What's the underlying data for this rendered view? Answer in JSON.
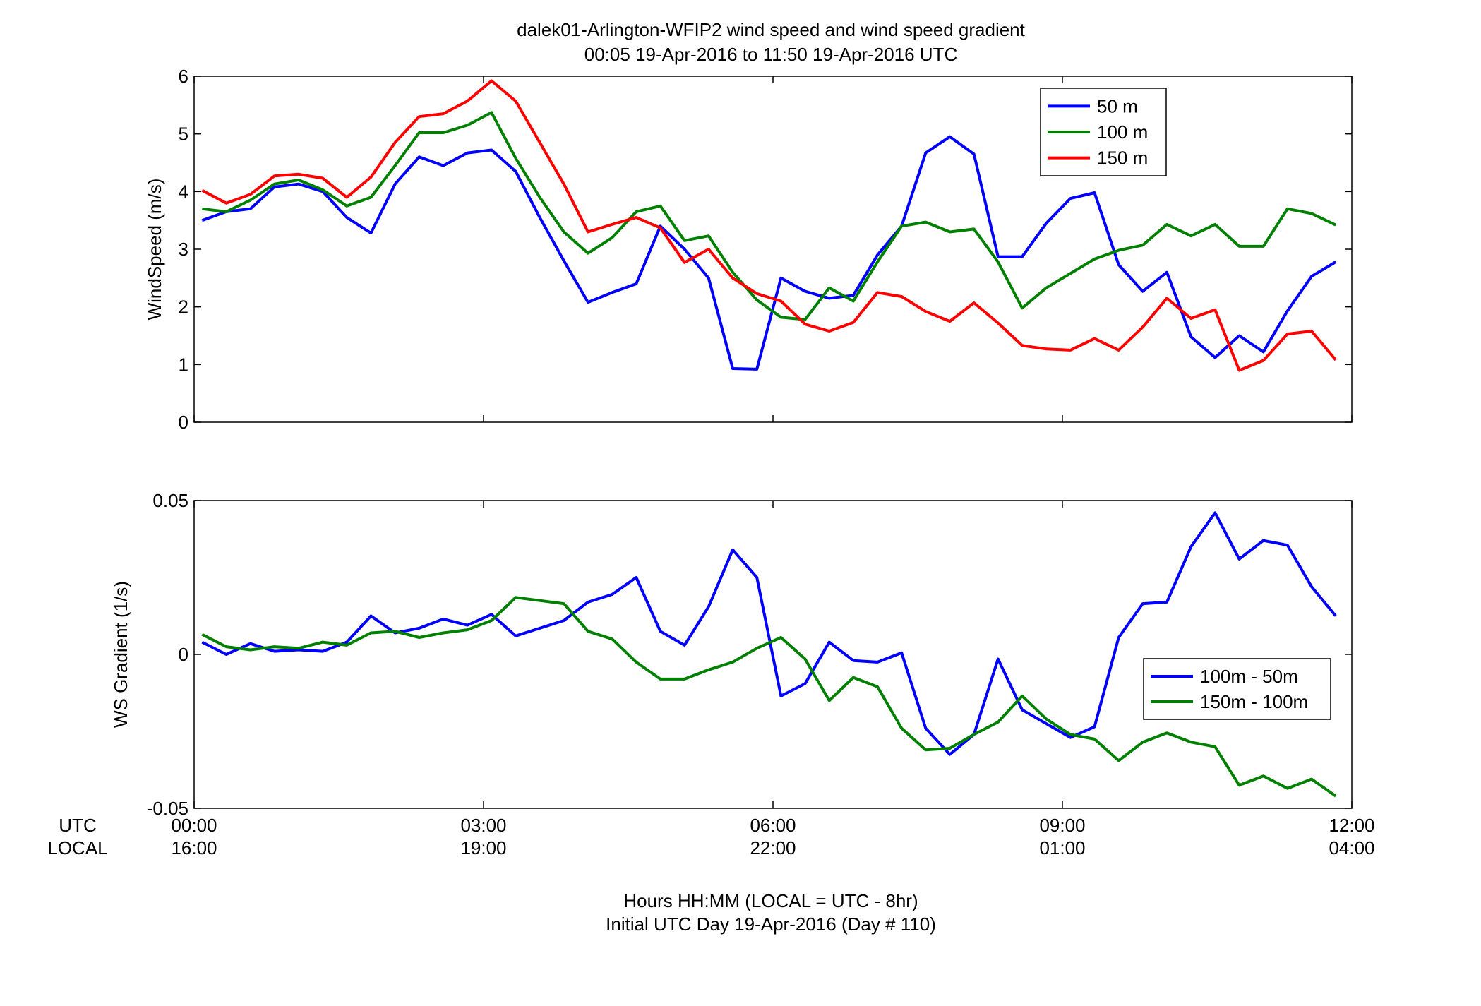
{
  "title_line1": "dalek01-Arlington-WFIP2  wind speed and wind speed gradient",
  "title_line2": "00:05 19-Apr-2016 to 11:50 19-Apr-2016  UTC",
  "xaxis": {
    "utc_label": "UTC",
    "local_label": "LOCAL",
    "utc_ticks": [
      "00:00",
      "03:00",
      "06:00",
      "09:00",
      "12:00"
    ],
    "local_ticks": [
      "16:00",
      "19:00",
      "22:00",
      "01:00",
      "04:00"
    ],
    "tick_hours": [
      0,
      3,
      6,
      9,
      12
    ],
    "footer_line1": "Hours HH:MM  (LOCAL = UTC - 8hr)",
    "footer_line2": "Initial UTC Day 19-Apr-2016 (Day # 110)"
  },
  "chart_data": [
    {
      "type": "line",
      "ylabel": "WindSpeed (m/s)",
      "xlim": [
        0,
        12
      ],
      "ylim": [
        0,
        6
      ],
      "yticks": [
        0,
        1,
        2,
        3,
        4,
        5,
        6
      ],
      "legend_position": "top-right",
      "x": [
        0.083,
        0.333,
        0.583,
        0.833,
        1.083,
        1.333,
        1.583,
        1.833,
        2.083,
        2.333,
        2.583,
        2.833,
        3.083,
        3.333,
        3.583,
        3.833,
        4.083,
        4.333,
        4.583,
        4.833,
        5.083,
        5.333,
        5.583,
        5.833,
        6.083,
        6.333,
        6.583,
        6.833,
        7.083,
        7.333,
        7.583,
        7.833,
        8.083,
        8.333,
        8.583,
        8.833,
        9.083,
        9.333,
        9.583,
        9.833,
        10.083,
        10.333,
        10.583,
        10.833,
        11.083,
        11.333,
        11.583,
        11.833
      ],
      "series": [
        {
          "name": "50 m",
          "color": "#0000ff",
          "values": [
            3.5,
            3.65,
            3.7,
            4.08,
            4.13,
            4.0,
            3.55,
            3.28,
            4.13,
            4.6,
            4.45,
            4.67,
            4.72,
            4.35,
            3.55,
            2.8,
            2.08,
            2.25,
            2.4,
            3.4,
            3.0,
            2.5,
            0.93,
            0.92,
            2.5,
            2.27,
            2.15,
            2.2,
            2.9,
            3.4,
            4.67,
            4.95,
            4.65,
            2.87,
            2.87,
            3.45,
            3.88,
            3.98,
            2.73,
            2.27,
            2.6,
            1.48,
            1.12,
            1.5,
            1.22,
            1.93,
            2.53,
            2.78
          ]
        },
        {
          "name": "100 m",
          "color": "#008000",
          "values": [
            3.7,
            3.65,
            3.85,
            4.13,
            4.2,
            4.03,
            3.75,
            3.9,
            4.45,
            5.02,
            5.02,
            5.15,
            5.37,
            4.58,
            3.9,
            3.3,
            2.93,
            3.2,
            3.65,
            3.75,
            3.15,
            3.23,
            2.6,
            2.12,
            1.82,
            1.78,
            2.33,
            2.1,
            2.78,
            3.4,
            3.47,
            3.3,
            3.35,
            2.78,
            1.98,
            2.33,
            2.58,
            2.83,
            2.98,
            3.07,
            3.43,
            3.23,
            3.43,
            3.05,
            3.05,
            3.7,
            3.62,
            3.42
          ]
        },
        {
          "name": "150 m",
          "color": "#ff0000",
          "values": [
            4.02,
            3.8,
            3.95,
            4.27,
            4.3,
            4.23,
            3.9,
            4.25,
            4.85,
            5.3,
            5.35,
            5.57,
            5.92,
            5.57,
            4.85,
            4.13,
            3.3,
            3.43,
            3.55,
            3.37,
            2.77,
            3.0,
            2.5,
            2.23,
            2.1,
            1.7,
            1.58,
            1.73,
            2.25,
            2.18,
            1.92,
            1.75,
            2.07,
            1.72,
            1.33,
            1.27,
            1.25,
            1.45,
            1.25,
            1.65,
            2.15,
            1.8,
            1.95,
            0.9,
            1.07,
            1.53,
            1.58,
            1.08
          ]
        }
      ]
    },
    {
      "type": "line",
      "ylabel": "WS Gradient (1/s)",
      "xlim": [
        0,
        12
      ],
      "ylim": [
        -0.05,
        0.05
      ],
      "yticks": [
        -0.05,
        0,
        0.05
      ],
      "ytick_labels": [
        "-0.05",
        "0",
        "0.05"
      ],
      "legend_position": "right",
      "x": [
        0.083,
        0.333,
        0.583,
        0.833,
        1.083,
        1.333,
        1.583,
        1.833,
        2.083,
        2.333,
        2.583,
        2.833,
        3.083,
        3.333,
        3.583,
        3.833,
        4.083,
        4.333,
        4.583,
        4.833,
        5.083,
        5.333,
        5.583,
        5.833,
        6.083,
        6.333,
        6.583,
        6.833,
        7.083,
        7.333,
        7.583,
        7.833,
        8.083,
        8.333,
        8.583,
        8.833,
        9.083,
        9.333,
        9.583,
        9.833,
        10.083,
        10.333,
        10.583,
        10.833,
        11.083,
        11.333,
        11.583,
        11.833
      ],
      "series": [
        {
          "name": "100m - 50m",
          "color": "#0000ff",
          "values": [
            0.004,
            0.0,
            0.0035,
            0.001,
            0.0015,
            0.001,
            0.004,
            0.0125,
            0.007,
            0.0085,
            0.0115,
            0.0095,
            0.013,
            0.006,
            0.0085,
            0.011,
            0.017,
            0.0195,
            0.025,
            0.0075,
            0.003,
            0.0155,
            0.034,
            0.025,
            -0.0135,
            -0.0095,
            0.004,
            -0.002,
            -0.0025,
            0.0005,
            -0.024,
            -0.0325,
            -0.026,
            -0.0015,
            -0.018,
            -0.0225,
            -0.027,
            -0.0235,
            0.0055,
            0.0165,
            0.017,
            0.035,
            0.046,
            0.031,
            0.037,
            0.0355,
            0.022,
            0.0125
          ]
        },
        {
          "name": "150m - 100m",
          "color": "#008000",
          "values": [
            0.0065,
            0.0025,
            0.0015,
            0.0025,
            0.002,
            0.004,
            0.003,
            0.007,
            0.0075,
            0.0055,
            0.007,
            0.008,
            0.011,
            0.0185,
            0.0175,
            0.0165,
            0.0075,
            0.005,
            -0.0025,
            -0.008,
            -0.008,
            -0.005,
            -0.0025,
            0.002,
            0.0055,
            -0.0015,
            -0.015,
            -0.0075,
            -0.0105,
            -0.024,
            -0.031,
            -0.0305,
            -0.026,
            -0.022,
            -0.0135,
            -0.021,
            -0.026,
            -0.0275,
            -0.0345,
            -0.0285,
            -0.0255,
            -0.0285,
            -0.03,
            -0.0425,
            -0.0395,
            -0.0435,
            -0.0405,
            -0.046
          ]
        }
      ]
    }
  ]
}
